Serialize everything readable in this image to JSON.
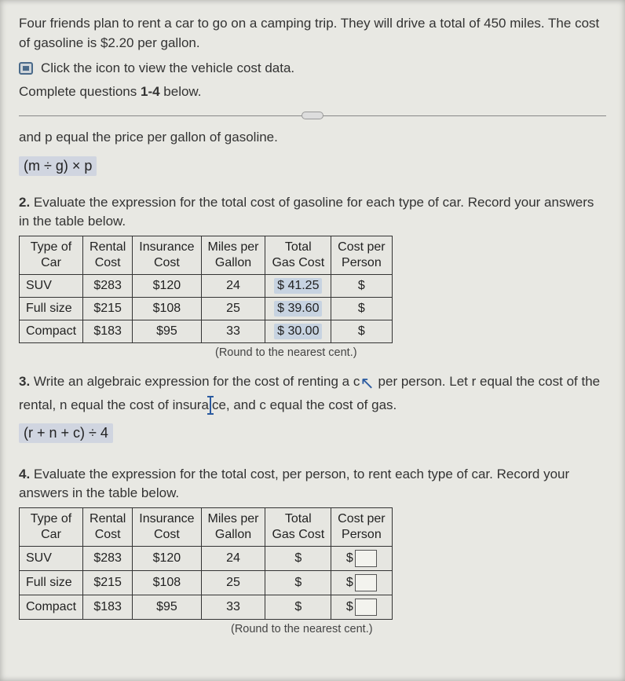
{
  "intro": "Four friends plan to rent a car to go on a camping trip. They will drive a total of 450 miles. The cost of gasoline is $2.20 per gallon.",
  "click_text": "Click the icon to view the vehicle cost data.",
  "complete_prefix": "Complete questions ",
  "complete_bold": "1-4",
  "complete_suffix": " below.",
  "pline": "and p equal the price per gallon of gasoline.",
  "expr1": "(m ÷ g) × p",
  "q2_num": "2.",
  "q2_text": " Evaluate the expression for the total cost of gasoline for each type of car. Record your answers in the table below.",
  "headers": {
    "c1a": "Type of",
    "c1b": "Car",
    "c2a": "Rental",
    "c2b": "Cost",
    "c3a": "Insurance",
    "c3b": "Cost",
    "c4a": "Miles per",
    "c4b": "Gallon",
    "c5a": "Total",
    "c5b": "Gas Cost",
    "c6a": "Cost per",
    "c6b": "Person"
  },
  "table1": [
    {
      "type": "SUV",
      "rental": "$283",
      "ins": "$120",
      "mpg": "24",
      "gas": "$ 41.25",
      "cp": "$"
    },
    {
      "type": "Full size",
      "rental": "$215",
      "ins": "$108",
      "mpg": "25",
      "gas": "$ 39.60",
      "cp": "$"
    },
    {
      "type": "Compact",
      "rental": "$183",
      "ins": "$95",
      "mpg": "33",
      "gas": "$ 30.00",
      "cp": "$"
    }
  ],
  "round_note": "(Round to the nearest cent.)",
  "q3_num": "3.",
  "q3_text_a": " Write an algebraic expression for the cost of renting a c",
  "q3_text_b": " per person. Let r equal the cost of the rental, n equal the cost of insura",
  "q3_text_c": "ce, and c equal the cost of gas.",
  "expr2": "(r + n + c) ÷ 4",
  "q4_num": "4.",
  "q4_text": " Evaluate the expression for the total cost, per person, to rent each type of car. Record your answers in the table below.",
  "table2": [
    {
      "type": "SUV",
      "rental": "$283",
      "ins": "$120",
      "mpg": "24",
      "gas": "$",
      "cp": "$"
    },
    {
      "type": "Full size",
      "rental": "$215",
      "ins": "$108",
      "mpg": "25",
      "gas": "$",
      "cp": "$"
    },
    {
      "type": "Compact",
      "rental": "$183",
      "ins": "$95",
      "mpg": "33",
      "gas": "$",
      "cp": "$"
    }
  ],
  "colors": {
    "page_bg": "#e8e8e3",
    "highlight_bg": "#c7d3e1",
    "text": "#2a2a2a",
    "border": "#333"
  }
}
